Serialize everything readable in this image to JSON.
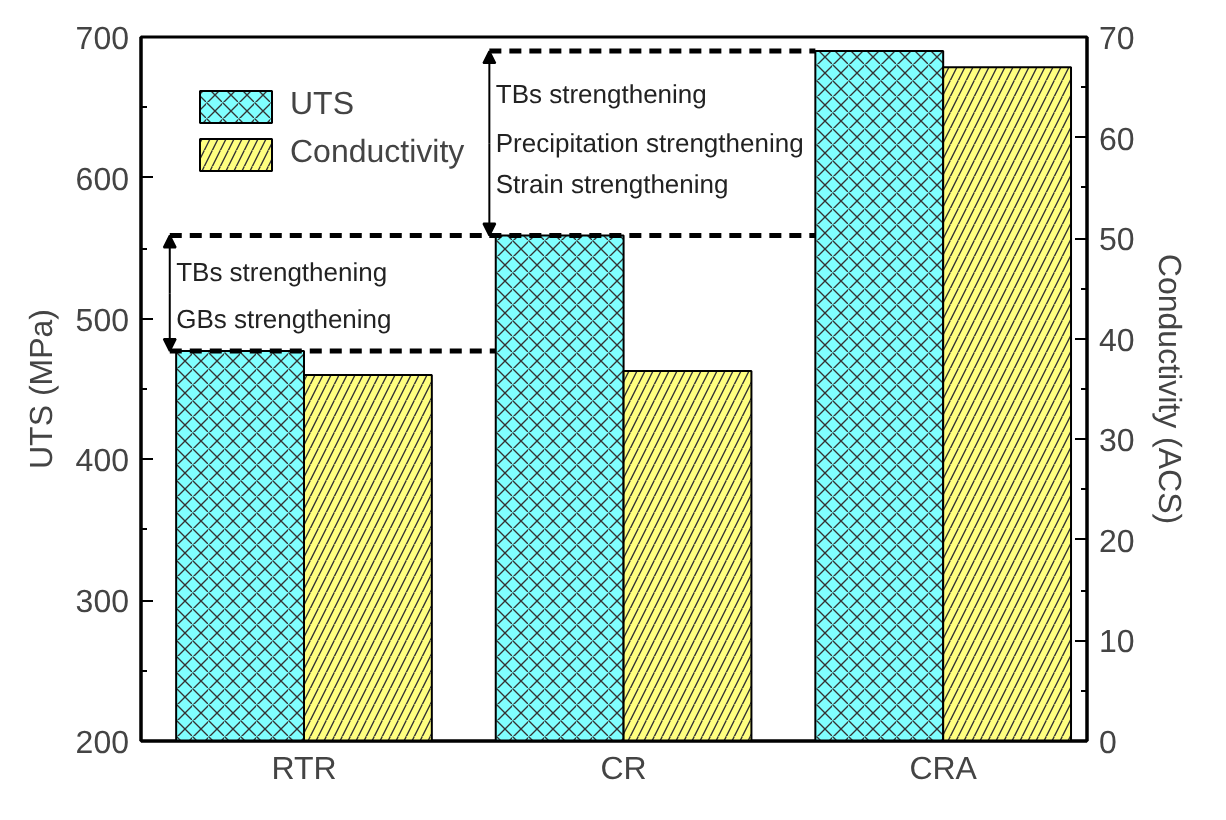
{
  "chart_data": {
    "type": "bar",
    "categories": [
      "RTR",
      "CR",
      "CRA"
    ],
    "series": [
      {
        "name": "UTS",
        "color": "#80ffff",
        "values": [
          477,
          559,
          690
        ]
      },
      {
        "name": "Conductivity",
        "color": "#ffff80",
        "values": [
          36.4,
          36.8,
          67
        ],
        "axis": "y2"
      }
    ],
    "ylabel": "UTS (MPa)",
    "y2label": "Conductivity (ACS)",
    "ylim": [
      200,
      700
    ],
    "yticks": [
      200,
      300,
      400,
      500,
      600,
      700
    ],
    "y2lim": [
      0,
      70
    ],
    "y2ticks": [
      0,
      10,
      20,
      30,
      40,
      50,
      60,
      70
    ],
    "annotations": [
      {
        "text": "TBs strengthening",
        "x": "RTR",
        "y": 477
      },
      "GBs strengthening",
      "TBs strengthening",
      {
        "text": "Precipitation strengthening",
        "x": "CR",
        "y": 559
      },
      "Strain strengthening"
    ],
    "grid": false,
    "legend": "top left"
  }
}
